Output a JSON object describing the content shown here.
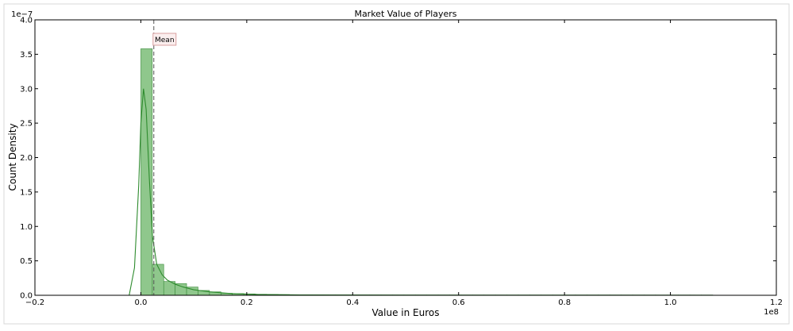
{
  "chart_data": {
    "type": "bar",
    "title": "Market Value of Players",
    "xlabel": "Value in Euros",
    "ylabel": "Count Density",
    "x_offset_label": "1e8",
    "y_offset_label": "1e−7",
    "xlim": [
      -0.2,
      1.2
    ],
    "ylim": [
      0,
      4.0
    ],
    "grid": false,
    "xticks": [
      -0.2,
      0.0,
      0.2,
      0.4,
      0.6,
      0.8,
      1.0,
      1.2
    ],
    "xtick_labels": [
      "−0.2",
      "0.0",
      "0.2",
      "0.4",
      "0.6",
      "0.8",
      "1.0",
      "1.2"
    ],
    "yticks": [
      0.0,
      0.5,
      1.0,
      1.5,
      2.0,
      2.5,
      3.0,
      3.5,
      4.0
    ],
    "ytick_labels": [
      "0.0",
      "0.5",
      "1.0",
      "1.5",
      "2.0",
      "2.5",
      "3.0",
      "3.5",
      "4.0"
    ],
    "bin_width": 0.0216,
    "bin_starts": [
      0.0,
      0.0216,
      0.0432,
      0.0648,
      0.0864,
      0.108,
      0.1296,
      0.1512,
      0.1728,
      0.1944,
      0.216,
      0.2376,
      0.2592,
      0.2808,
      0.3024,
      0.324,
      0.3456,
      0.3672,
      0.3888,
      0.4104,
      0.432,
      0.4536,
      0.4752,
      0.4968,
      0.5184,
      0.54,
      0.5616,
      0.5832,
      0.6048,
      0.6264,
      0.648,
      0.6696,
      0.6912,
      0.7128,
      0.7344,
      0.756,
      0.7776,
      0.7992,
      0.8208,
      0.8424,
      0.864,
      0.8856,
      0.9072,
      0.9288,
      0.9504,
      0.972,
      0.9936,
      1.0152,
      1.0368,
      1.0584
    ],
    "values": [
      3.58,
      0.45,
      0.2,
      0.17,
      0.12,
      0.07,
      0.05,
      0.03,
      0.025,
      0.02,
      0.015,
      0.012,
      0.01,
      0.008,
      0.006,
      0.005,
      0.004,
      0.0035,
      0.003,
      0.0025,
      0.002,
      0.002,
      0.0015,
      0.0015,
      0.001,
      0.001,
      0.001,
      0.001,
      0.001,
      0.001,
      0.0005,
      0.0005,
      0.0005,
      0.0005,
      0.0005,
      0.0005,
      0.0005,
      0.0005,
      0.0005,
      0.0005,
      0.0005,
      0.0005,
      0.0005,
      0.0005,
      0.0005,
      0.0005,
      0.0005,
      0.0005,
      0.0005,
      0.0005
    ],
    "kde": {
      "x": [
        -0.022,
        -0.012,
        -0.004,
        0.0,
        0.005,
        0.01,
        0.016,
        0.022,
        0.03,
        0.04,
        0.05,
        0.065,
        0.08,
        0.1,
        0.13,
        0.17,
        0.22,
        0.3,
        0.5,
        0.8,
        1.08
      ],
      "y": [
        0.0,
        0.4,
        1.6,
        2.5,
        3.0,
        2.7,
        1.7,
        0.85,
        0.45,
        0.3,
        0.22,
        0.16,
        0.12,
        0.08,
        0.05,
        0.025,
        0.012,
        0.005,
        0.002,
        0.001,
        0.0
      ]
    },
    "mean": 0.0245,
    "mean_label": "Mean",
    "colors": {
      "bar_fill": "#8fc78c",
      "bar_edge": "#3b8a3b",
      "kde_line": "#2e8b2e",
      "mean_line": "#555555",
      "mean_label_box_edge": "#d9a0a0",
      "mean_label_box_fill": "#fbeeee"
    }
  }
}
